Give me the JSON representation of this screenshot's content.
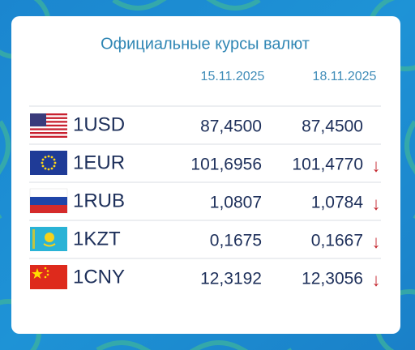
{
  "header": {
    "title": "Официальные курсы валют",
    "dates": [
      "15.11.2025",
      "18.11.2025"
    ]
  },
  "table": {
    "rows": [
      {
        "currency": "1USD",
        "rates": [
          "87,4500",
          "87,4500"
        ]
      },
      {
        "currency": "1EUR",
        "rates": [
          "101,6956",
          "101,4770"
        ],
        "trend": "↓"
      },
      {
        "currency": "1RUB",
        "rates": [
          "1,0807",
          "1,0784"
        ],
        "trend": "↓"
      },
      {
        "currency": "1KZT",
        "rates": [
          "0,1675",
          "0,1667"
        ],
        "trend": "↓"
      },
      {
        "currency": "1CNY",
        "rates": [
          "12,3192",
          "12,3056"
        ],
        "trend": "↓"
      }
    ]
  }
}
